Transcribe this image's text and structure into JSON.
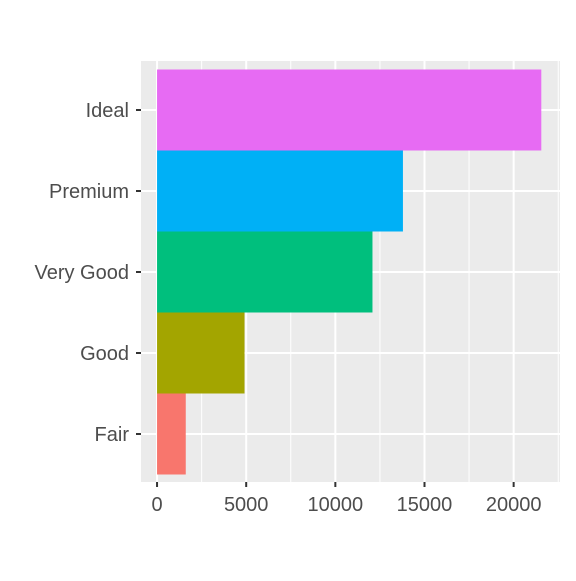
{
  "chart_data": {
    "type": "bar",
    "orientation": "horizontal",
    "categories": [
      "Fair",
      "Good",
      "Very Good",
      "Premium",
      "Ideal"
    ],
    "values": [
      1610,
      4906,
      12082,
      13791,
      21551
    ],
    "xlim": [
      -900,
      22600
    ],
    "x_ticks": [
      0,
      5000,
      10000,
      15000,
      20000
    ],
    "x_tick_labels": [
      "0",
      "5000",
      "10000",
      "15000",
      "20000"
    ],
    "title": "",
    "xlabel": "",
    "ylabel": "",
    "grid": true,
    "legend": "none",
    "colors": [
      "#F8766D",
      "#A3A500",
      "#00BF7D",
      "#00B0F6",
      "#E76BF3"
    ],
    "panel_background": "#EBEBEB",
    "grid_color": "#FFFFFF"
  }
}
